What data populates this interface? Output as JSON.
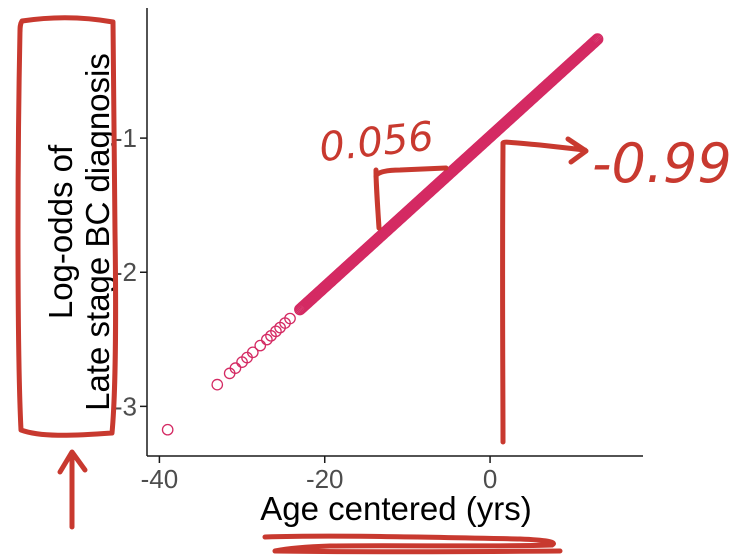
{
  "chart_data": {
    "type": "scatter",
    "xlabel": "Age centered (yrs)",
    "ylabel_lines": [
      "Log-odds of",
      "Late stage BC diagnosis"
    ],
    "x_ticks": [
      -40,
      -20,
      0
    ],
    "y_ticks": [
      -1,
      -2,
      -3
    ],
    "x_tick_labels": [
      "-40",
      "-20",
      "0"
    ],
    "y_tick_labels": [
      "-1",
      "-2",
      "-3"
    ],
    "xlim": [
      -41.5,
      18.5
    ],
    "ylim": [
      -3.37,
      -0.03
    ],
    "grid": false,
    "intercept": -0.99,
    "slope": 0.056,
    "x_range_dense": [
      -23,
      13
    ],
    "sparse_points_x": [
      -39,
      -33,
      -31.5,
      -30.8,
      -30,
      -29.4,
      -28.7,
      -27.8,
      -27,
      -26.5,
      -25.9,
      -25.4,
      -24.8,
      -24.2
    ],
    "color": "#d42a63"
  },
  "annotations": {
    "slope_text": "0.056",
    "intercept_text": "-0.99",
    "ink_color": "#c8392f"
  }
}
